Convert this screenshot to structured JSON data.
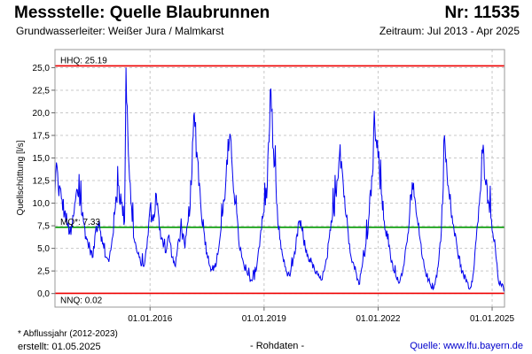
{
  "header": {
    "title": "Messstelle: Quelle Blaubrunnen",
    "number": "Nr: 11535",
    "aquifer": "Grundwasserleiter:  Weißer Jura / Malmkarst",
    "period": "Zeitraum: Jul 2013 - Apr 2025"
  },
  "footer": {
    "footnote": "* Abflussjahr (2012-2023)",
    "created": "erstellt:  01.05.2025",
    "raw": "- Rohdaten -",
    "source": "Quelle: www.lfu.bayern.de"
  },
  "colors": {
    "series": "#0000ee",
    "hhq": "#ee0000",
    "nnq": "#ee0000",
    "mq": "#009900",
    "grid": "#c8c8c8",
    "frame": "#999999"
  },
  "chart_data": {
    "type": "line",
    "ylabel": "Quellschüttung [l/s]",
    "ylim": [
      -1.5,
      27
    ],
    "xlim": [
      "2013-07-01",
      "2025-04-30"
    ],
    "yticks": [
      "0,0",
      "2,5",
      "5,0",
      "7,5",
      "10,0",
      "12,5",
      "15,0",
      "17,5",
      "20,0",
      "22,5",
      "25,0"
    ],
    "ytick_values": [
      0,
      2.5,
      5,
      7.5,
      10,
      12.5,
      15,
      17.5,
      20,
      22.5,
      25
    ],
    "xticks": [
      "01.01.2016",
      "01.01.2019",
      "01.01.2022",
      "01.01.2025"
    ],
    "xtick_values": [
      "2016-01-01",
      "2019-01-01",
      "2022-01-01",
      "2025-01-01"
    ],
    "grid": true,
    "reference_lines": [
      {
        "label": "HHQ: 25.19",
        "value": 25.19,
        "color": "#ee0000"
      },
      {
        "label": "MQ*: 7.33",
        "value": 7.33,
        "color": "#009900"
      },
      {
        "label": "NNQ: 0.02",
        "value": 0.02,
        "color": "#ee0000"
      }
    ],
    "series": [
      {
        "x": [
          "2013-07-01",
          "2013-07-15",
          "2013-08-01",
          "2013-09-01",
          "2013-10-01",
          "2013-11-01",
          "2013-12-01",
          "2014-01-01",
          "2014-02-01",
          "2014-03-01",
          "2014-04-01",
          "2014-05-01",
          "2014-06-01",
          "2014-07-01",
          "2014-08-01",
          "2014-09-01",
          "2014-10-01",
          "2014-11-01",
          "2014-12-01",
          "2015-01-01",
          "2015-02-01",
          "2015-03-01",
          "2015-04-01",
          "2015-05-01",
          "2015-05-15",
          "2015-06-01",
          "2015-07-01",
          "2015-08-01",
          "2015-09-01",
          "2015-10-01",
          "2015-11-01",
          "2015-12-01",
          "2016-01-01",
          "2016-02-01",
          "2016-03-01",
          "2016-04-01",
          "2016-05-01",
          "2016-06-01",
          "2016-07-01",
          "2016-08-01",
          "2016-09-01",
          "2016-10-01",
          "2016-11-01",
          "2016-12-01",
          "2017-01-01",
          "2017-02-01",
          "2017-03-01",
          "2017-04-01",
          "2017-05-01",
          "2017-06-01",
          "2017-07-01",
          "2017-08-01",
          "2017-09-01",
          "2017-10-01",
          "2017-11-01",
          "2017-12-01",
          "2018-01-01",
          "2018-02-01",
          "2018-03-01",
          "2018-04-01",
          "2018-05-01",
          "2018-06-01",
          "2018-07-01",
          "2018-08-01",
          "2018-09-01",
          "2018-10-01",
          "2018-11-01",
          "2018-12-01",
          "2019-01-01",
          "2019-02-01",
          "2019-03-01",
          "2019-04-01",
          "2019-05-01",
          "2019-06-01",
          "2019-07-01",
          "2019-08-01",
          "2019-09-01",
          "2019-10-01",
          "2019-11-01",
          "2019-12-01",
          "2020-01-01",
          "2020-02-01",
          "2020-03-01",
          "2020-04-01",
          "2020-05-01",
          "2020-06-01",
          "2020-07-01",
          "2020-08-01",
          "2020-09-01",
          "2020-10-01",
          "2020-11-01",
          "2020-12-01",
          "2021-01-01",
          "2021-02-01",
          "2021-03-01",
          "2021-04-01",
          "2021-05-01",
          "2021-06-01",
          "2021-07-01",
          "2021-08-01",
          "2021-09-01",
          "2021-10-01",
          "2021-11-01",
          "2021-12-01",
          "2022-01-01",
          "2022-02-01",
          "2022-03-01",
          "2022-04-01",
          "2022-05-01",
          "2022-06-01",
          "2022-07-01",
          "2022-08-01",
          "2022-09-01",
          "2022-10-01",
          "2022-11-01",
          "2022-12-01",
          "2023-01-01",
          "2023-02-01",
          "2023-03-01",
          "2023-04-01",
          "2023-05-01",
          "2023-06-01",
          "2023-07-01",
          "2023-08-01",
          "2023-09-01",
          "2023-10-01",
          "2023-11-01",
          "2023-12-01",
          "2024-01-01",
          "2024-02-01",
          "2024-03-01",
          "2024-04-01",
          "2024-05-01",
          "2024-06-01",
          "2024-07-01",
          "2024-08-01",
          "2024-09-01",
          "2024-10-01",
          "2024-11-01",
          "2024-12-01",
          "2025-01-01",
          "2025-02-01",
          "2025-03-01",
          "2025-04-01",
          "2025-04-30"
        ],
        "y": [
          11.0,
          14.5,
          12.0,
          10.5,
          9.0,
          7.5,
          6.5,
          9.0,
          11.5,
          10.0,
          8.0,
          6.0,
          5.0,
          4.0,
          7.5,
          8.0,
          5.5,
          4.0,
          3.5,
          6.0,
          9.5,
          12.0,
          10.0,
          8.0,
          25.0,
          18.0,
          10.0,
          6.0,
          4.5,
          3.5,
          3.0,
          5.0,
          9.5,
          8.0,
          11.0,
          7.0,
          6.0,
          4.5,
          6.5,
          4.0,
          3.0,
          6.0,
          7.0,
          5.0,
          8.0,
          12.0,
          20.0,
          15.0,
          10.0,
          7.0,
          4.5,
          3.0,
          2.5,
          3.5,
          6.0,
          9.0,
          13.0,
          17.0,
          14.0,
          10.0,
          6.0,
          4.0,
          2.5,
          2.0,
          1.5,
          1.5,
          4.0,
          7.0,
          9.0,
          12.0,
          22.5,
          16.0,
          10.0,
          6.0,
          4.0,
          2.5,
          2.0,
          3.0,
          5.0,
          8.0,
          7.0,
          5.0,
          4.0,
          3.5,
          2.5,
          2.0,
          1.5,
          2.5,
          4.0,
          7.0,
          9.0,
          12.5,
          16.5,
          12.0,
          8.5,
          5.5,
          3.5,
          2.5,
          1.0,
          3.0,
          5.0,
          8.0,
          13.0,
          18.5,
          15.0,
          11.0,
          8.0,
          6.0,
          4.0,
          2.5,
          1.5,
          1.5,
          3.0,
          5.5,
          9.0,
          11.5,
          9.0,
          6.5,
          4.0,
          2.5,
          1.5,
          0.5,
          1.0,
          3.0,
          7.0,
          17.5,
          12.0,
          9.5,
          7.0,
          5.0,
          3.0,
          2.0,
          1.5,
          0.5,
          2.0,
          6.0,
          10.0,
          15.5,
          12.0,
          10.0,
          7.0,
          5.0,
          1.5,
          0.8,
          0.5
        ]
      }
    ]
  }
}
